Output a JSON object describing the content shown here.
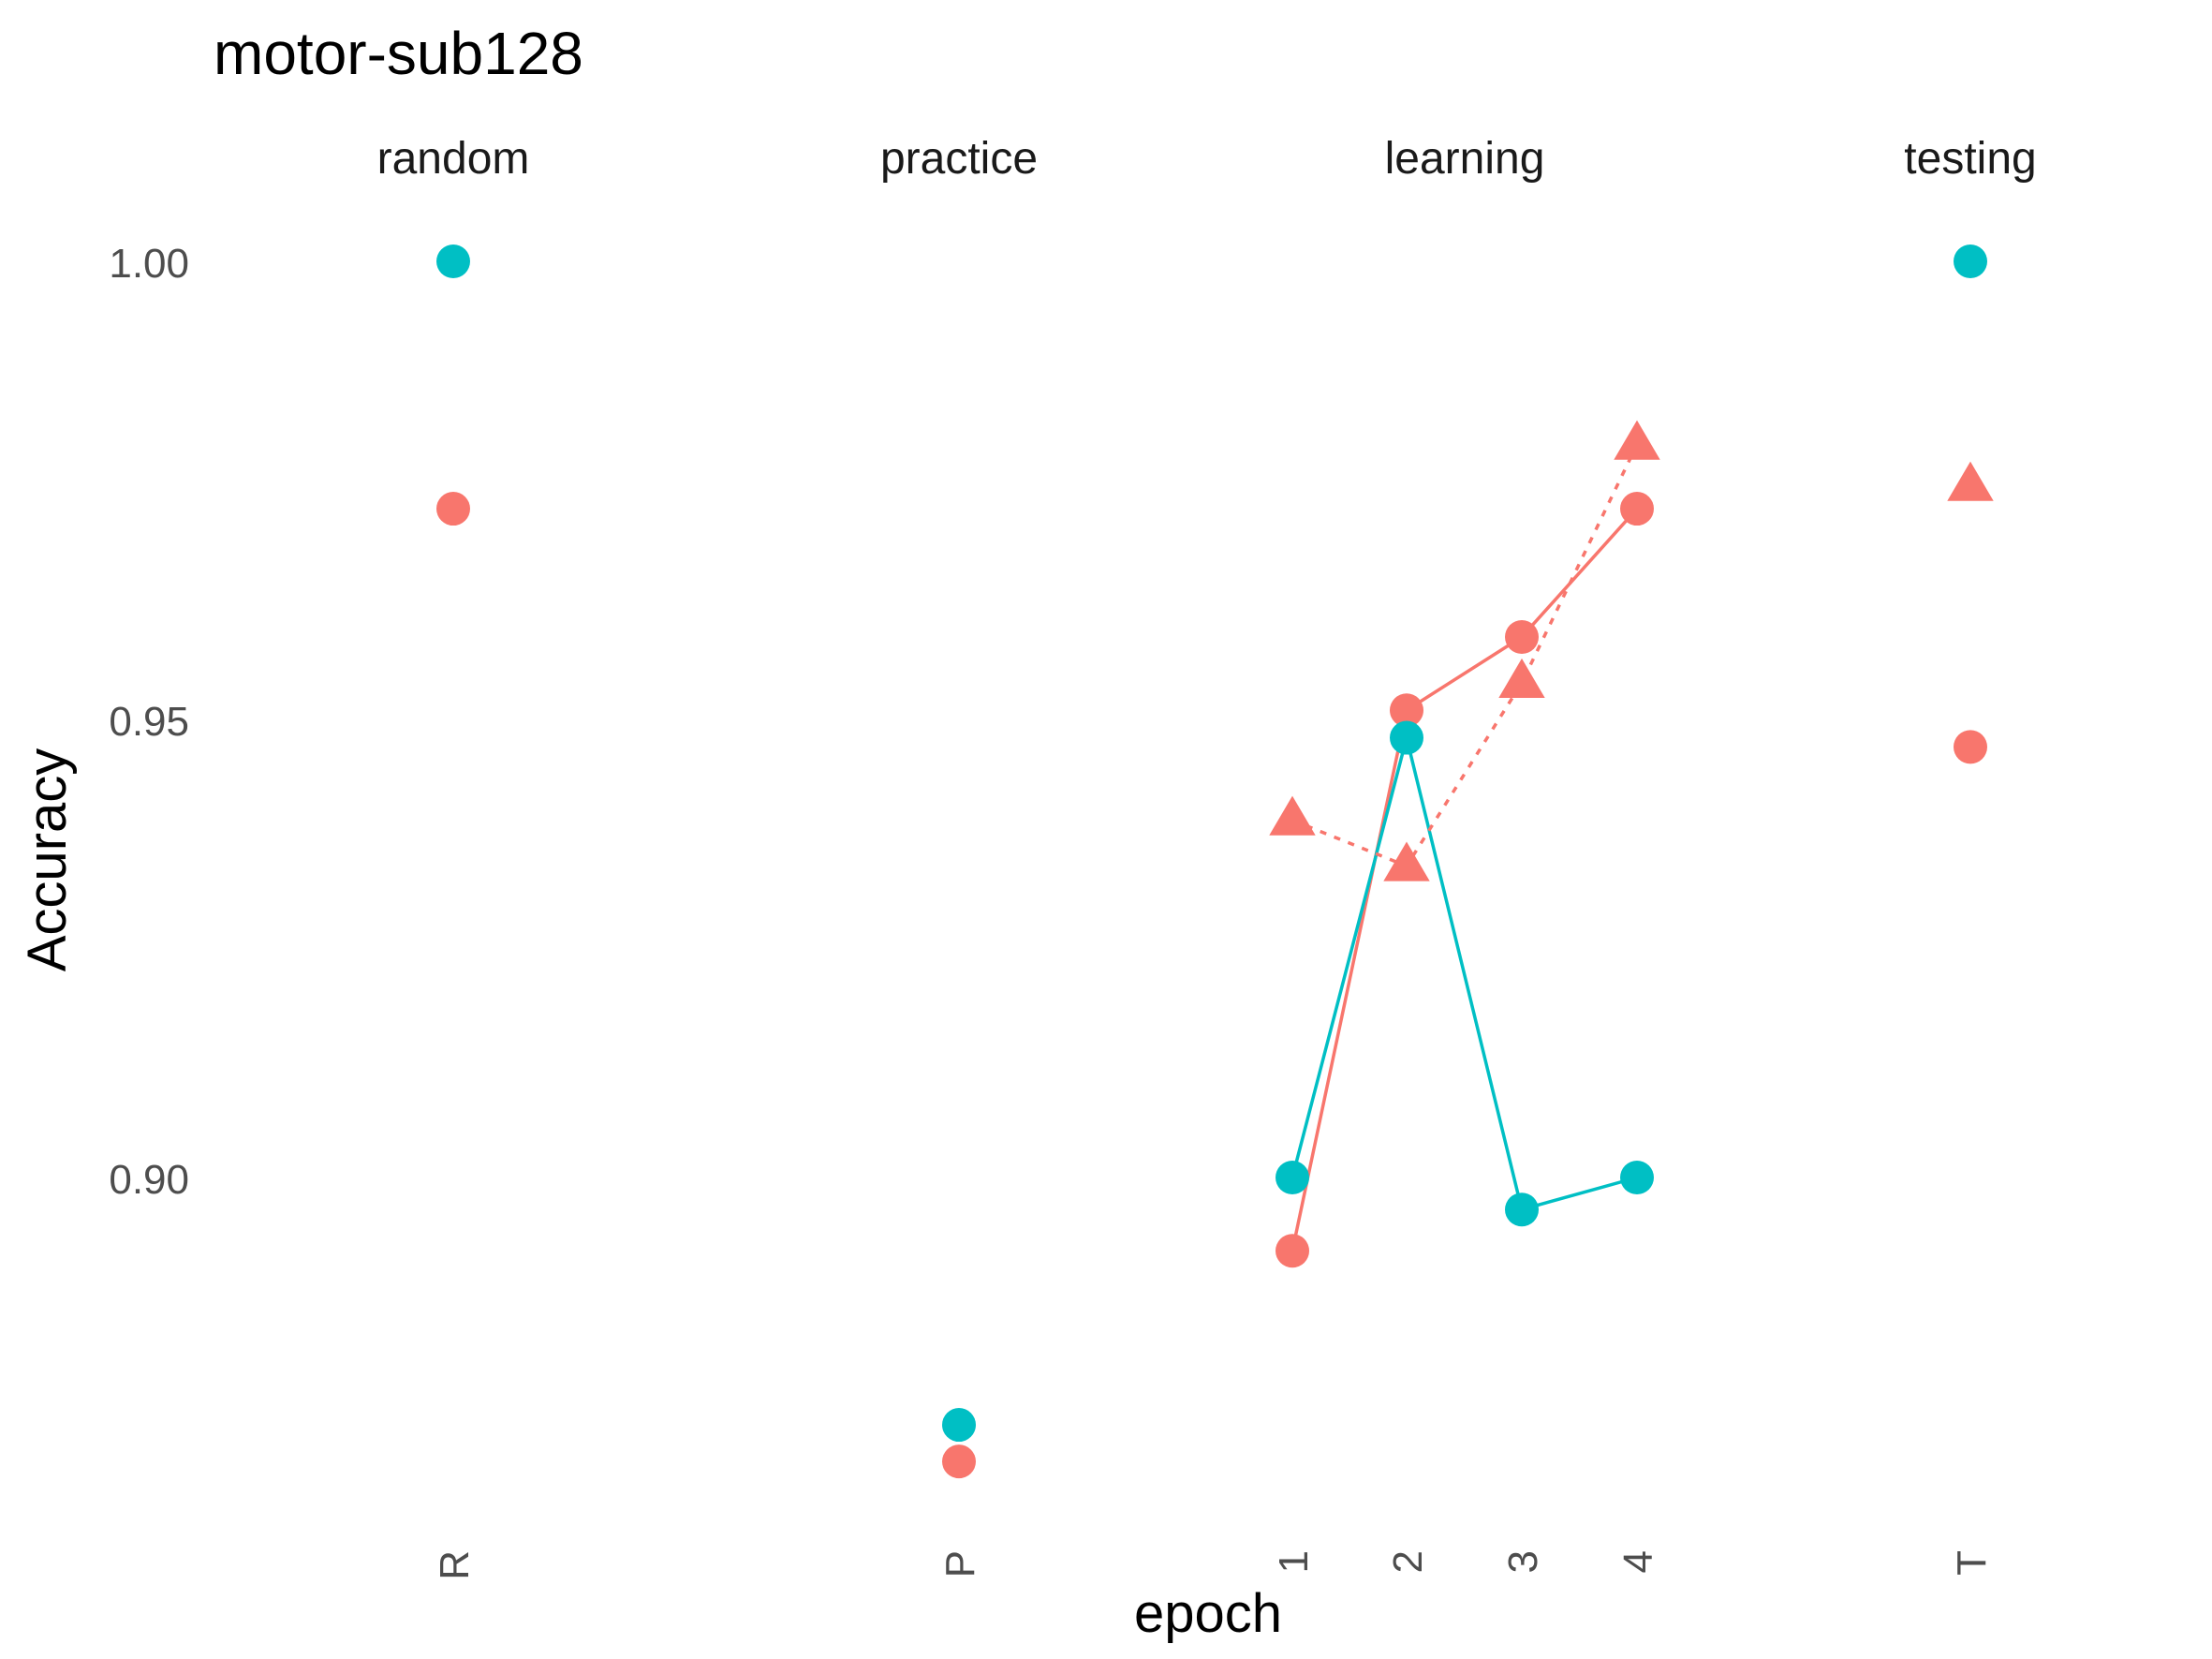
{
  "chart_data": {
    "type": "scatter",
    "title": "motor-sub128",
    "xlabel": "epoch",
    "ylabel": "Accuracy",
    "ylim": [
      0.864,
      1.012
    ],
    "yticks": [
      {
        "value": 0.9,
        "label": "0.90"
      },
      {
        "value": 0.95,
        "label": "0.95"
      },
      {
        "value": 1.0,
        "label": "1.00"
      }
    ],
    "grid": false,
    "legend": "none",
    "panels": [
      {
        "id": "random",
        "label": "random",
        "ticks": [
          "R"
        ]
      },
      {
        "id": "practice",
        "label": "practice",
        "ticks": [
          "P"
        ]
      },
      {
        "id": "learning",
        "label": "learning",
        "ticks": [
          "1",
          "2",
          "3",
          "4"
        ]
      },
      {
        "id": "testing",
        "label": "testing",
        "ticks": [
          "T"
        ]
      }
    ],
    "series": [
      {
        "color": "#F8766D",
        "shape": "circle",
        "line": "solid",
        "points": [
          {
            "panel": "random",
            "x": "R",
            "y": 0.973
          },
          {
            "panel": "practice",
            "x": "P",
            "y": 0.869
          },
          {
            "panel": "learning",
            "x": "1",
            "y": 0.892
          },
          {
            "panel": "learning",
            "x": "2",
            "y": 0.951
          },
          {
            "panel": "learning",
            "x": "3",
            "y": 0.959
          },
          {
            "panel": "learning",
            "x": "4",
            "y": 0.973
          },
          {
            "panel": "testing",
            "x": "T",
            "y": 0.947
          }
        ]
      },
      {
        "color": "#00BFC4",
        "shape": "circle",
        "line": "solid",
        "points": [
          {
            "panel": "random",
            "x": "R",
            "y": 1.0
          },
          {
            "panel": "practice",
            "x": "P",
            "y": 0.873
          },
          {
            "panel": "learning",
            "x": "1",
            "y": 0.9
          },
          {
            "panel": "learning",
            "x": "2",
            "y": 0.948
          },
          {
            "panel": "learning",
            "x": "3",
            "y": 0.8965
          },
          {
            "panel": "learning",
            "x": "4",
            "y": 0.9
          },
          {
            "panel": "testing",
            "x": "T",
            "y": 1.0
          }
        ]
      },
      {
        "color": "#F8766D",
        "shape": "triangle",
        "line": "dashed",
        "points": [
          {
            "panel": "learning",
            "x": "1",
            "y": 0.939
          },
          {
            "panel": "learning",
            "x": "2",
            "y": 0.934
          },
          {
            "panel": "learning",
            "x": "3",
            "y": 0.954
          },
          {
            "panel": "learning",
            "x": "4",
            "y": 0.98
          },
          {
            "panel": "testing",
            "x": "T",
            "y": 0.9755
          }
        ]
      }
    ]
  }
}
